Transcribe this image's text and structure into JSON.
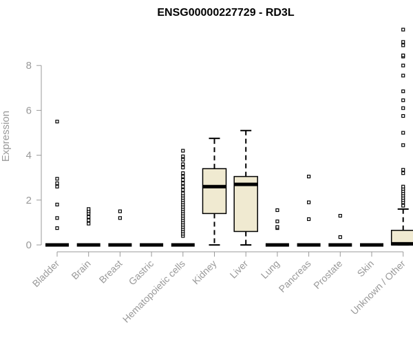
{
  "chart_data": {
    "type": "boxplot",
    "title": "ENSG00000227729 - RD3L",
    "xlabel": "",
    "ylabel": "Expression",
    "ylim": [
      0,
      9.8
    ],
    "yticks": [
      0,
      2,
      4,
      6,
      8
    ],
    "grid": false,
    "box_fill": "#f0ead1",
    "categories": [
      "Bladder",
      "Brain",
      "Breast",
      "Gastric",
      "Hematopoietic cells",
      "Kidney",
      "Liver",
      "Lung",
      "Pancreas",
      "Prostate",
      "Skin",
      "Unknown / Other"
    ],
    "boxes": [
      {
        "category": "Bladder",
        "min": 0,
        "q1": 0,
        "median": 0,
        "q3": 0,
        "max": 0,
        "outliers": [
          0.75,
          1.2,
          1.8,
          2.6,
          2.75,
          2.95,
          5.5
        ]
      },
      {
        "category": "Brain",
        "min": 0,
        "q1": 0,
        "median": 0,
        "q3": 0,
        "max": 0,
        "outliers": [
          0.95,
          1.1,
          1.25,
          1.4,
          1.5,
          1.6
        ]
      },
      {
        "category": "Breast",
        "min": 0,
        "q1": 0,
        "median": 0,
        "q3": 0,
        "max": 0,
        "outliers": [
          1.2,
          1.5
        ]
      },
      {
        "category": "Gastric",
        "min": 0,
        "q1": 0,
        "median": 0,
        "q3": 0,
        "max": 0,
        "outliers": []
      },
      {
        "category": "Hematopoietic cells",
        "min": 0,
        "q1": 0,
        "median": 0,
        "q3": 0,
        "max": 0,
        "outliers": [
          0.4,
          0.5,
          0.6,
          0.7,
          0.8,
          0.9,
          1.0,
          1.1,
          1.2,
          1.3,
          1.4,
          1.5,
          1.6,
          1.7,
          1.8,
          1.9,
          2.0,
          2.1,
          2.2,
          2.3,
          2.45,
          2.6,
          2.75,
          2.9,
          3.05,
          3.2,
          3.45,
          3.6,
          3.8,
          3.95,
          4.2
        ]
      },
      {
        "category": "Kidney",
        "min": 0,
        "q1": 1.4,
        "median": 2.6,
        "q3": 3.4,
        "max": 4.75,
        "outliers": []
      },
      {
        "category": "Liver",
        "min": 0,
        "q1": 0.6,
        "median": 2.7,
        "q3": 3.05,
        "max": 5.1,
        "outliers": []
      },
      {
        "category": "Lung",
        "min": 0,
        "q1": 0,
        "median": 0,
        "q3": 0,
        "max": 0,
        "outliers": [
          0.75,
          0.8,
          1.05,
          1.55
        ]
      },
      {
        "category": "Pancreas",
        "min": 0,
        "q1": 0,
        "median": 0,
        "q3": 0,
        "max": 0,
        "outliers": [
          1.15,
          1.9,
          3.05
        ]
      },
      {
        "category": "Prostate",
        "min": 0,
        "q1": 0,
        "median": 0,
        "q3": 0,
        "max": 0,
        "outliers": [
          0.35,
          1.3
        ]
      },
      {
        "category": "Skin",
        "min": 0,
        "q1": 0,
        "median": 0,
        "q3": 0,
        "max": 0,
        "outliers": []
      },
      {
        "category": "Unknown / Other",
        "min": 0,
        "q1": 0,
        "median": 0.05,
        "q3": 0.65,
        "max": 1.6,
        "outliers": [
          1.75,
          1.9,
          2.0,
          2.1,
          2.2,
          2.3,
          2.4,
          2.5,
          2.6,
          3.2,
          3.35,
          4.45,
          5.0,
          5.75,
          6.1,
          6.45,
          6.85,
          7.55,
          8.0,
          8.4,
          8.45,
          8.9,
          9.05,
          9.6
        ]
      }
    ]
  }
}
